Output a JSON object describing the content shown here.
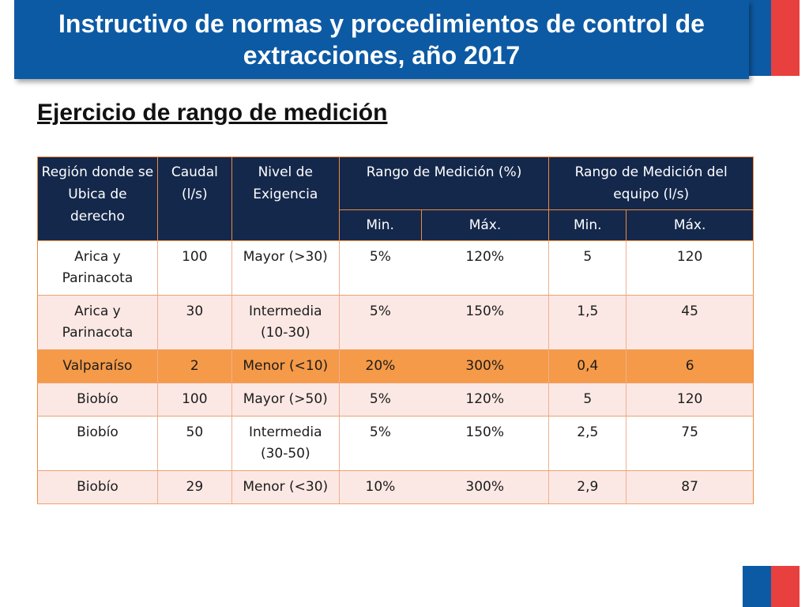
{
  "title": "Instructivo de  normas y procedimientos de control de extracciones, año 2017",
  "subtitle": "Ejercicio de rango de medición",
  "table": {
    "headers": {
      "region": "Región donde se Ubica de derecho",
      "caudal": "Caudal (l/s)",
      "nivel": "Nivel de Exigencia",
      "rango_pct": "Rango de Medición (%)",
      "rango_eq": "Rango de Medición del equipo (l/s)",
      "min1": "Min.",
      "max1": "Máx.",
      "min2": "Min.",
      "max2": "Máx."
    },
    "rows": [
      {
        "region": "Arica y Parinacota",
        "caudal": "100",
        "nivel": "Mayor (>30)",
        "min_pct": "5%",
        "max_pct": "120%",
        "min_eq": "5",
        "max_eq": "120"
      },
      {
        "region": "Arica y Parinacota",
        "caudal": "30",
        "nivel": "Intermedia (10-30)",
        "min_pct": "5%",
        "max_pct": "150%",
        "min_eq": "1,5",
        "max_eq": "45"
      },
      {
        "region": "Valparaíso",
        "caudal": "2",
        "nivel": "Menor (<10)",
        "min_pct": "20%",
        "max_pct": "300%",
        "min_eq": "0,4",
        "max_eq": "6"
      },
      {
        "region": "Biobío",
        "caudal": "100",
        "nivel": "Mayor (>50)",
        "min_pct": "5%",
        "max_pct": "120%",
        "min_eq": "5",
        "max_eq": "120"
      },
      {
        "region": "Biobío",
        "caudal": "50",
        "nivel": "Intermedia (30-50)",
        "min_pct": "5%",
        "max_pct": "150%",
        "min_eq": "2,5",
        "max_eq": "75"
      },
      {
        "region": "Biobío",
        "caudal": "29",
        "nivel": "Menor (<30)",
        "min_pct": "10%",
        "max_pct": "300%",
        "min_eq": "2,9",
        "max_eq": "87"
      }
    ]
  },
  "colors": {
    "title_bar": "#0d5aa4",
    "header_bg": "#14284b",
    "highlight_row": "#f59a48",
    "alt_row": "#fbe8e4",
    "accent_red": "#e8403f"
  }
}
